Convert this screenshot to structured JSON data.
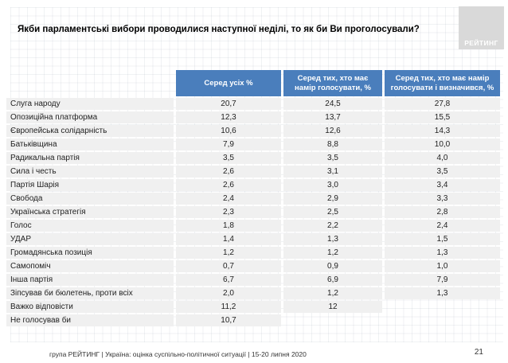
{
  "slide": {
    "logo_text": "РЕЙТИНГ",
    "footer": "група РЕЙТИНГ |  Україна: оцінка суспільно-політичної ситуації  | 15-20 липня  2020",
    "page_number": "21"
  },
  "colors": {
    "header_blue": "#4a7ebc",
    "row_gray": "#f0f0f0",
    "logo_gray": "#d9d9d9"
  },
  "chart_data": {
    "type": "table",
    "title": "Якби парламентські вибори проводилися наступної неділі, то як би Ви проголосували?",
    "columns": [
      "Серед усіх %",
      "Серед тих, хто має намір голосувати, %",
      "Серед тих, хто має намір голосувати і визначився, %"
    ],
    "rows": [
      {
        "name": "Слуга народу",
        "values": [
          "20,7",
          "24,5",
          "27,8"
        ]
      },
      {
        "name": "Опозиційна платформа",
        "values": [
          "12,3",
          "13,7",
          "15,5"
        ]
      },
      {
        "name": "Європейська солідарність",
        "values": [
          "10,6",
          "12,6",
          "14,3"
        ]
      },
      {
        "name": "Батьківщина",
        "values": [
          "7,9",
          "8,8",
          "10,0"
        ]
      },
      {
        "name": "Радикальна партія",
        "values": [
          "3,5",
          "3,5",
          "4,0"
        ]
      },
      {
        "name": "Сила і честь",
        "values": [
          "2,6",
          "3,1",
          "3,5"
        ]
      },
      {
        "name": "Партія Шарія",
        "values": [
          "2,6",
          "3,0",
          "3,4"
        ]
      },
      {
        "name": "Свобода",
        "values": [
          "2,4",
          "2,9",
          "3,3"
        ]
      },
      {
        "name": "Українська стратегія",
        "values": [
          "2,3",
          "2,5",
          "2,8"
        ]
      },
      {
        "name": "Голос",
        "values": [
          "1,8",
          "2,2",
          "2,4"
        ]
      },
      {
        "name": "УДАР",
        "values": [
          "1,4",
          "1,3",
          "1,5"
        ]
      },
      {
        "name": "Громадянська позиція",
        "values": [
          "1,2",
          "1,2",
          "1,3"
        ]
      },
      {
        "name": "Самопоміч",
        "values": [
          "0,7",
          "0,9",
          "1,0"
        ]
      },
      {
        "name": "Інша партія",
        "values": [
          "6,7",
          "6,9",
          "7,9"
        ]
      },
      {
        "name": "Зіпсував би бюлетень, проти всіх",
        "values": [
          "2,0",
          "1,2",
          "1,3"
        ]
      },
      {
        "name": "Важко відповісти",
        "values": [
          "11,2",
          "12",
          null
        ]
      },
      {
        "name": "Не голосував би",
        "values": [
          "10,7",
          null,
          null
        ]
      }
    ]
  }
}
